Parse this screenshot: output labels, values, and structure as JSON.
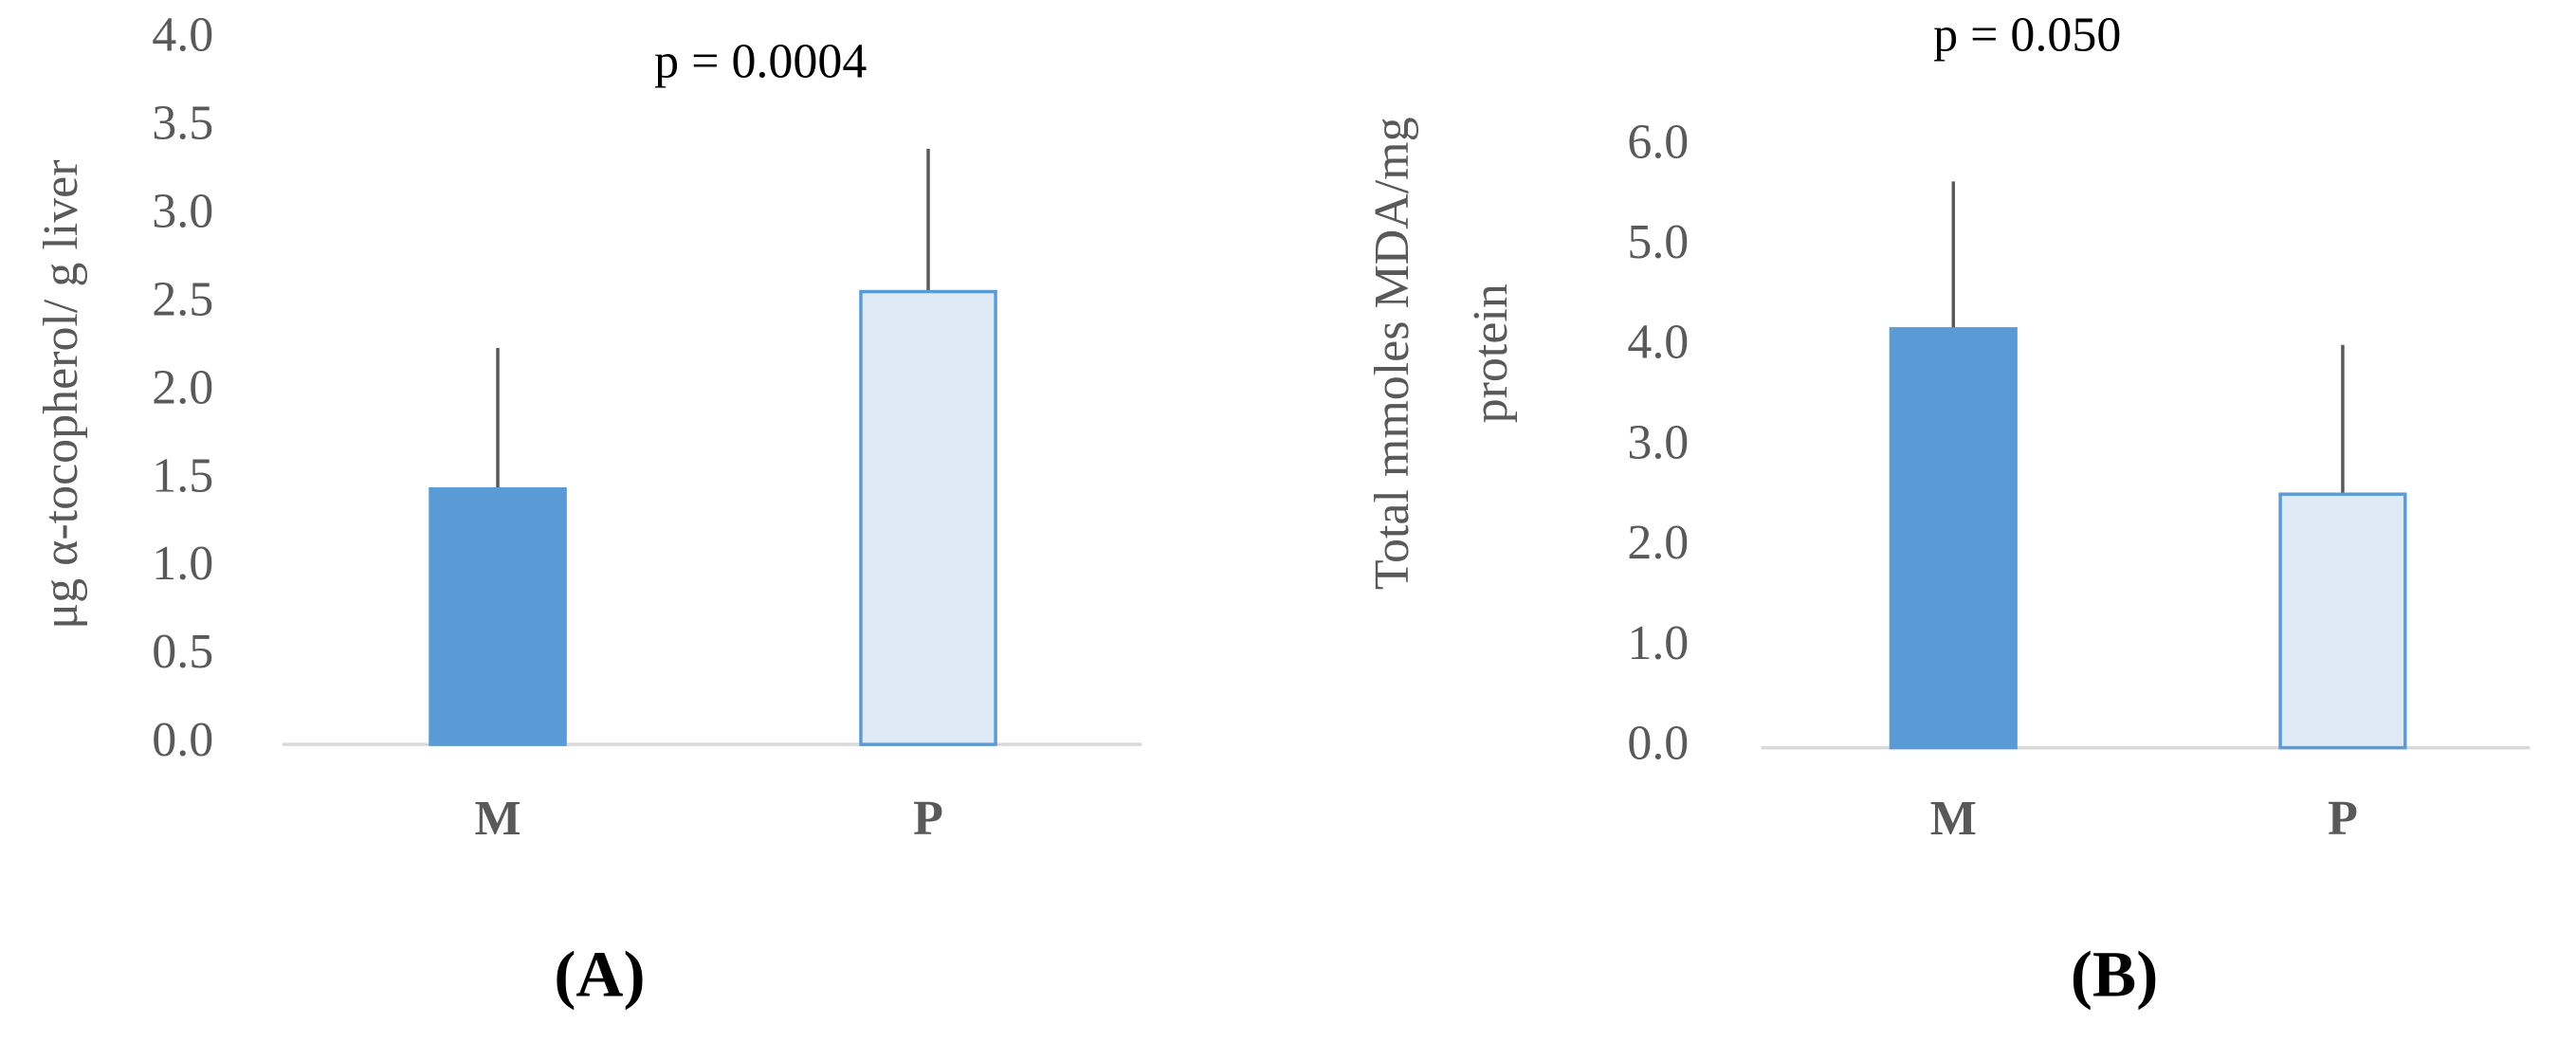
{
  "chart_data": [
    {
      "type": "bar",
      "title": "p = 0.0004",
      "panel_label": "(A)",
      "y_label": [
        "μg α-tocopherol/  g liver"
      ],
      "categories": [
        "M",
        "P"
      ],
      "values": [
        1.45,
        2.57
      ],
      "errors": [
        0.8,
        0.81
      ],
      "colors": [
        "#5b9bd5",
        "#deebf7"
      ],
      "edge_color": "#5b9bd5",
      "ylim": [
        0,
        4
      ],
      "yticks": [
        {
          "value": 0,
          "label": "0.0"
        },
        0.5,
        {
          "value": 1,
          "label": "1.0"
        },
        1.5,
        {
          "value": 2,
          "label": "2.0"
        },
        2.5,
        {
          "value": 3,
          "label": "3.0"
        },
        3.5,
        {
          "value": 4,
          "label": "4.0"
        }
      ]
    },
    {
      "type": "bar",
      "title": "p = 0.050",
      "panel_label": "(B)",
      "y_label": [
        "Total  mmoles MDA/mg",
        "protein"
      ],
      "categories": [
        "M",
        "P"
      ],
      "values": [
        4.18,
        2.53
      ],
      "errors": [
        1.47,
        1.49
      ],
      "colors": [
        "#5b9bd5",
        "#deebf7"
      ],
      "edge_color": "#5b9bd5",
      "ylim": [
        0,
        6
      ],
      "yticks": [
        {
          "value": 0,
          "label": "0.0"
        },
        {
          "value": 1,
          "label": "1.0"
        },
        {
          "value": 2,
          "label": "2.0"
        },
        {
          "value": 3,
          "label": "3.0"
        },
        {
          "value": 4,
          "label": "4.0"
        },
        {
          "value": 5,
          "label": "5.0"
        },
        {
          "value": 6,
          "label": "6.0"
        }
      ]
    }
  ]
}
